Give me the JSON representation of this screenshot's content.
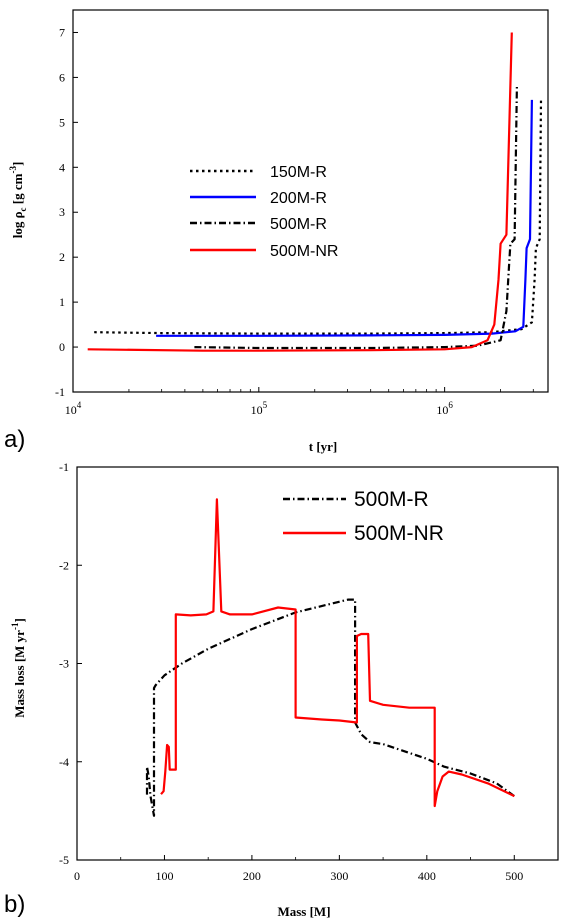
{
  "panels": {
    "a": {
      "tag": "a)"
    },
    "b": {
      "tag": "b)"
    }
  },
  "chart_data": [
    {
      "type": "line",
      "panel": "a",
      "xlabel": "t [yr]",
      "ylabel_parts": {
        "main": "log ρ",
        "sub": "c",
        "units": " [g cm",
        "sup": "-3",
        "close": "]"
      },
      "xscale": "log",
      "xlim": [
        10000,
        3600000
      ],
      "ylim": [
        -1,
        7.5
      ],
      "xticks": [
        {
          "v": 10000,
          "base": "10",
          "exp": "4"
        },
        {
          "v": 100000,
          "base": "10",
          "exp": "5"
        },
        {
          "v": 1000000,
          "base": "10",
          "exp": "6"
        }
      ],
      "yticks": [
        -1,
        0,
        1,
        2,
        3,
        4,
        5,
        6,
        7
      ],
      "legend_position": "center-left",
      "series": [
        {
          "name": "150M-R",
          "color": "#000000",
          "style": "dotted",
          "points": [
            [
              13000,
              0.33
            ],
            [
              30000,
              0.31
            ],
            [
              100000,
              0.3
            ],
            [
              400000,
              0.3
            ],
            [
              1000000,
              0.31
            ],
            [
              1800000,
              0.33
            ],
            [
              2600000,
              0.4
            ],
            [
              2950000,
              0.55
            ],
            [
              3050000,
              1.5
            ],
            [
              3100000,
              2.2
            ],
            [
              3250000,
              2.4
            ],
            [
              3300000,
              5.5
            ]
          ]
        },
        {
          "name": "200M-R",
          "color": "#0000ff",
          "style": "solid",
          "points": [
            [
              28000,
              0.25
            ],
            [
              100000,
              0.25
            ],
            [
              400000,
              0.26
            ],
            [
              1000000,
              0.27
            ],
            [
              1800000,
              0.3
            ],
            [
              2400000,
              0.35
            ],
            [
              2650000,
              0.45
            ],
            [
              2720000,
              1.5
            ],
            [
              2760000,
              2.2
            ],
            [
              2880000,
              2.4
            ],
            [
              2950000,
              5.5
            ]
          ]
        },
        {
          "name": "500M-R",
          "color": "#000000",
          "style": "dashdot",
          "points": [
            [
              45000,
              0.0
            ],
            [
              100000,
              -0.02
            ],
            [
              400000,
              -0.02
            ],
            [
              1000000,
              0.0
            ],
            [
              1500000,
              0.03
            ],
            [
              2000000,
              0.15
            ],
            [
              2150000,
              0.8
            ],
            [
              2220000,
              1.8
            ],
            [
              2260000,
              2.3
            ],
            [
              2380000,
              2.4
            ],
            [
              2450000,
              5.8
            ]
          ]
        },
        {
          "name": "500M-NR",
          "color": "#ff0000",
          "style": "solid",
          "points": [
            [
              12000,
              -0.05
            ],
            [
              50000,
              -0.08
            ],
            [
              100000,
              -0.08
            ],
            [
              400000,
              -0.07
            ],
            [
              1000000,
              -0.05
            ],
            [
              1400000,
              0.0
            ],
            [
              1700000,
              0.15
            ],
            [
              1850000,
              0.5
            ],
            [
              1950000,
              1.5
            ],
            [
              2000000,
              2.3
            ],
            [
              2150000,
              2.5
            ],
            [
              2300000,
              7.0
            ]
          ]
        }
      ]
    },
    {
      "type": "line",
      "panel": "b",
      "xlabel": "Mass [M]",
      "ylabel": "Mass  loss [M yr",
      "ylabel_sup": "-1",
      "ylabel_close": "]",
      "xlim": [
        0,
        550
      ],
      "ylim": [
        -5,
        -1
      ],
      "xticks": [
        0,
        100,
        200,
        300,
        400,
        500
      ],
      "yticks": [
        -5,
        -4,
        -3,
        -2,
        -1
      ],
      "legend_position": "top-right",
      "series": [
        {
          "name": "500M-R",
          "color": "#000000",
          "style": "dashdot",
          "points": [
            [
              500,
              -4.35
            ],
            [
              480,
              -4.22
            ],
            [
              450,
              -4.12
            ],
            [
              420,
              -4.05
            ],
            [
              400,
              -3.97
            ],
            [
              350,
              -3.82
            ],
            [
              335,
              -3.8
            ],
            [
              325,
              -3.72
            ],
            [
              318,
              -3.6
            ],
            [
              318,
              -2.35
            ],
            [
              310,
              -2.35
            ],
            [
              250,
              -2.48
            ],
            [
              200,
              -2.65
            ],
            [
              150,
              -2.85
            ],
            [
              120,
              -3.0
            ],
            [
              100,
              -3.12
            ],
            [
              90,
              -3.22
            ],
            [
              88,
              -3.25
            ],
            [
              88,
              -4.55
            ],
            [
              84,
              -4.35
            ],
            [
              82,
              -4.15
            ],
            [
              80,
              -4.05
            ],
            [
              80,
              -4.35
            ]
          ]
        },
        {
          "name": "500M-NR",
          "color": "#ff0000",
          "style": "solid",
          "points": [
            [
              500,
              -4.35
            ],
            [
              470,
              -4.22
            ],
            [
              440,
              -4.13
            ],
            [
              425,
              -4.1
            ],
            [
              418,
              -4.15
            ],
            [
              412,
              -4.3
            ],
            [
              409,
              -4.45
            ],
            [
              409,
              -3.45
            ],
            [
              380,
              -3.45
            ],
            [
              350,
              -3.42
            ],
            [
              335,
              -3.38
            ],
            [
              333,
              -2.7
            ],
            [
              325,
              -2.7
            ],
            [
              320,
              -2.72
            ],
            [
              320,
              -3.6
            ],
            [
              300,
              -3.58
            ],
            [
              280,
              -3.57
            ],
            [
              250,
              -3.55
            ],
            [
              250,
              -2.45
            ],
            [
              230,
              -2.43
            ],
            [
              200,
              -2.5
            ],
            [
              175,
              -2.5
            ],
            [
              165,
              -2.47
            ],
            [
              160,
              -1.33
            ],
            [
              156,
              -2.47
            ],
            [
              148,
              -2.5
            ],
            [
              130,
              -2.51
            ],
            [
              113,
              -2.5
            ],
            [
              113,
              -4.08
            ],
            [
              106,
              -4.08
            ],
            [
              105,
              -3.85
            ],
            [
              103,
              -3.83
            ],
            [
              101,
              -4.1
            ],
            [
              99,
              -4.3
            ],
            [
              96,
              -4.33
            ]
          ]
        }
      ]
    }
  ]
}
